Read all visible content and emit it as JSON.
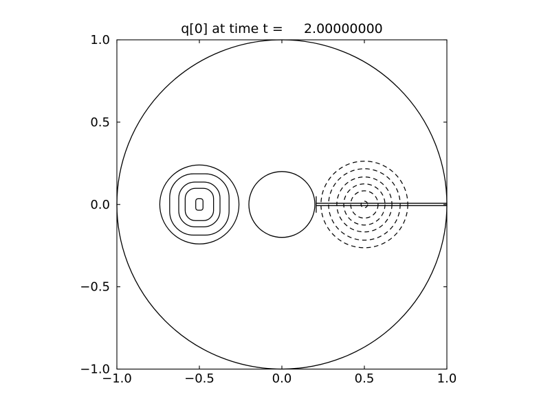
{
  "chart_data": {
    "type": "contour",
    "title": "q[0] at time t =     2.00000000",
    "xlim": [
      -1.0,
      1.0
    ],
    "ylim": [
      -1.0,
      1.0
    ],
    "xticks": [
      -1.0,
      -0.5,
      0.0,
      0.5,
      1.0
    ],
    "yticks": [
      -1.0,
      -0.5,
      0.0,
      0.5,
      1.0
    ],
    "xtick_labels": [
      "−1.0",
      "−0.5",
      "0.0",
      "0.5",
      "1.0"
    ],
    "ytick_labels": [
      "−1.0",
      "−0.5",
      "0.0",
      "0.5",
      "1.0"
    ],
    "grid": false,
    "colors": {
      "stroke": "#000000",
      "background": "#ffffff"
    },
    "features": {
      "domain_boundary_circle": {
        "cx": 0.0,
        "cy": 0.0,
        "r": 1.0,
        "stroke": "solid"
      },
      "inner_cylinder_circle": {
        "cx": 0.0,
        "cy": 0.0,
        "r": 0.2,
        "stroke": "solid"
      },
      "branch_cut": {
        "y": 0.0,
        "x1": 0.208,
        "x2": 1.0,
        "y_offsets": [
          0.007,
          -0.007
        ],
        "tip_cap": {
          "x": 0.208,
          "y1": -0.05,
          "y2": 0.05
        },
        "stroke": "solid"
      },
      "positive_vortex_contours": {
        "center": [
          -0.5,
          0.0
        ],
        "stroke": "solid",
        "rings": [
          {
            "shape": "ellipse",
            "rx": 0.24,
            "ry": 0.24
          },
          {
            "shape": "rounded-rect",
            "rx": 0.18,
            "ry": 0.186,
            "corner": 0.145
          },
          {
            "shape": "rounded-rect",
            "rx": 0.125,
            "ry": 0.136,
            "corner": 0.098
          },
          {
            "shape": "rounded-rect",
            "rx": 0.086,
            "ry": 0.098,
            "corner": 0.062
          },
          {
            "shape": "rounded-rect",
            "rx": 0.022,
            "ry": 0.035,
            "corner": 0.014
          }
        ]
      },
      "negative_vortex_contours": {
        "center": [
          0.5,
          0.0
        ],
        "stroke": "dashed",
        "rings": [
          {
            "shape": "circle",
            "r": 0.263
          },
          {
            "shape": "circle",
            "r": 0.217
          },
          {
            "shape": "circle",
            "r": 0.167
          },
          {
            "shape": "circle",
            "r": 0.125
          },
          {
            "shape": "circle",
            "r": 0.083
          },
          {
            "shape": "circle",
            "r": 0.02
          }
        ]
      }
    }
  }
}
